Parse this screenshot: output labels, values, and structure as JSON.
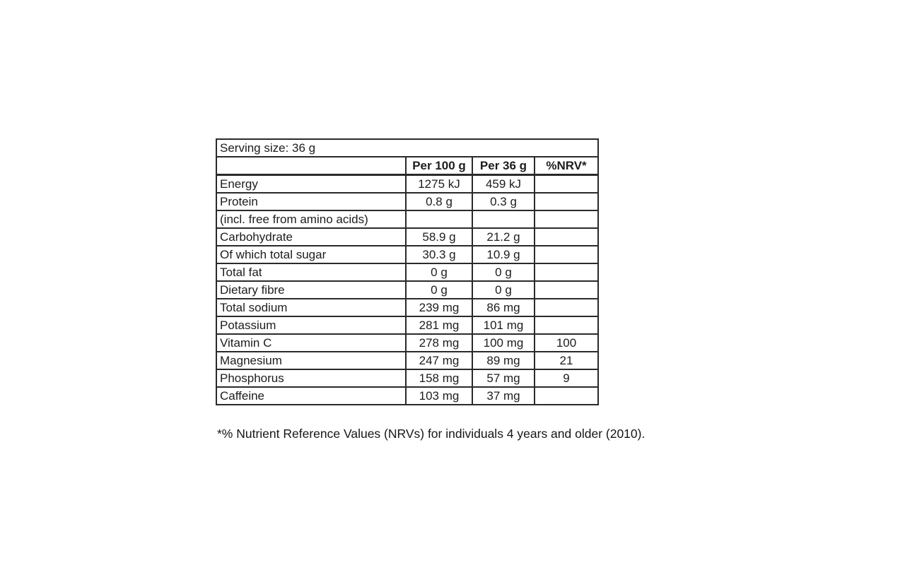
{
  "table": {
    "serving_size_label": "Serving size: 36 g",
    "columns": [
      "",
      "Per 100 g",
      "Per 36 g",
      "%NRV*"
    ],
    "rows": [
      {
        "label": "Energy",
        "per100": "1275 kJ",
        "per36": "459 kJ",
        "nrv": ""
      },
      {
        "label": "Protein",
        "per100": "0.8 g",
        "per36": "0.3 g",
        "nrv": ""
      },
      {
        "label": "(incl. free from amino acids)",
        "per100": "",
        "per36": "",
        "nrv": ""
      },
      {
        "label": "Carbohydrate",
        "per100": "58.9 g",
        "per36": "21.2 g",
        "nrv": ""
      },
      {
        "label": "Of which total sugar",
        "per100": "30.3 g",
        "per36": "10.9 g",
        "nrv": ""
      },
      {
        "label": "Total fat",
        "per100": "0 g",
        "per36": "0 g",
        "nrv": ""
      },
      {
        "label": "Dietary fibre",
        "per100": "0 g",
        "per36": "0 g",
        "nrv": ""
      },
      {
        "label": "Total sodium",
        "per100": "239 mg",
        "per36": "86 mg",
        "nrv": ""
      },
      {
        "label": "Potassium",
        "per100": "281 mg",
        "per36": "101 mg",
        "nrv": ""
      },
      {
        "label": "Vitamin C",
        "per100": "278 mg",
        "per36": "100 mg",
        "nrv": "100"
      },
      {
        "label": "Magnesium",
        "per100": "247 mg",
        "per36": "89 mg",
        "nrv": "21"
      },
      {
        "label": "Phosphorus",
        "per100": "158 mg",
        "per36": "57 mg",
        "nrv": "9"
      },
      {
        "label": "Caffeine",
        "per100": "103 mg",
        "per36": "37 mg",
        "nrv": ""
      }
    ],
    "footnote": "*% Nutrient Reference Values (NRVs) for individuals 4 years and older (2010)."
  }
}
